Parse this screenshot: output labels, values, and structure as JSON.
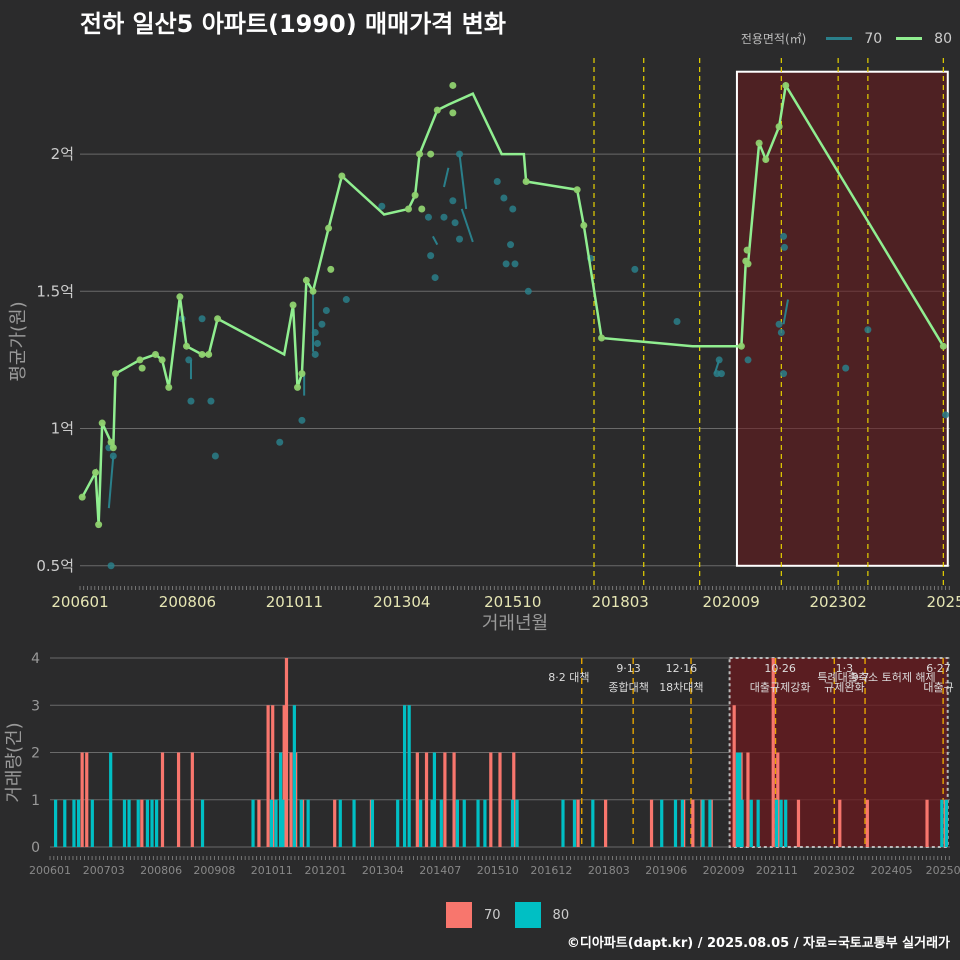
{
  "title": "전하 일산5 아파트(1990) 매매가격 변화",
  "footer": "©디아파트(dapt.kr) / 2025.08.05 / 자료=국토교통부 실거래가",
  "colors": {
    "s70_line": "#2a7f8a",
    "s80_line": "#90ee90",
    "bar70": "#f8766d",
    "bar80": "#00bfc4",
    "highlight": "#6b1a1e",
    "policy": "#e6d200",
    "policy2": "#e6a500",
    "grid": "#6a6a6a"
  },
  "chart_data": [
    {
      "type": "line",
      "title": "전하 일산5 아파트(1990) 매매가격 변화",
      "xlabel": "거래년월",
      "ylabel": "평균가(원)",
      "legend_title": "전용면적(㎡)",
      "legend": [
        "70",
        "80"
      ],
      "x_ticks": [
        "200601",
        "200806",
        "201011",
        "201304",
        "201510",
        "201803",
        "202009",
        "202302",
        "2025"
      ],
      "y_ticks": [
        {
          "v": 0.5,
          "label": "0.5억"
        },
        {
          "v": 1.0,
          "label": "1억"
        },
        {
          "v": 1.5,
          "label": "1.5억"
        },
        {
          "v": 2.0,
          "label": "2억"
        }
      ],
      "ylim": [
        0.43,
        2.35
      ],
      "xlim": [
        2006.0,
        2025.6
      ],
      "highlight_range": [
        2020.8,
        2025.55
      ],
      "policy_dates": [
        2017.58,
        2018.7,
        2019.96,
        2021.8,
        2023.08,
        2023.75,
        2025.45
      ],
      "series": [
        {
          "name": "80",
          "line": [
            [
              2006.05,
              0.75
            ],
            [
              2006.35,
              0.84
            ],
            [
              2006.42,
              0.65
            ],
            [
              2006.5,
              1.02
            ],
            [
              2006.7,
              0.95
            ],
            [
              2006.75,
              0.93
            ],
            [
              2006.8,
              1.2
            ],
            [
              2007.35,
              1.25
            ],
            [
              2007.7,
              1.27
            ],
            [
              2007.85,
              1.25
            ],
            [
              2008.0,
              1.15
            ],
            [
              2008.25,
              1.48
            ],
            [
              2008.4,
              1.3
            ],
            [
              2008.75,
              1.27
            ],
            [
              2008.9,
              1.27
            ],
            [
              2009.1,
              1.4
            ],
            [
              2010.6,
              1.27
            ],
            [
              2010.8,
              1.45
            ],
            [
              2010.9,
              1.15
            ],
            [
              2011.0,
              1.2
            ],
            [
              2011.1,
              1.54
            ],
            [
              2011.25,
              1.5
            ],
            [
              2011.6,
              1.73
            ],
            [
              2011.9,
              1.92
            ],
            [
              2012.85,
              1.78
            ],
            [
              2013.4,
              1.8
            ],
            [
              2013.55,
              1.85
            ],
            [
              2013.65,
              2.0
            ],
            [
              2014.05,
              2.16
            ],
            [
              2014.3,
              2.18
            ],
            [
              2014.85,
              2.22
            ],
            [
              2015.5,
              2.0
            ],
            [
              2016.0,
              2.0
            ],
            [
              2016.05,
              1.9
            ],
            [
              2017.2,
              1.87
            ],
            [
              2017.35,
              1.74
            ],
            [
              2017.75,
              1.33
            ],
            [
              2019.8,
              1.3
            ],
            [
              2020.9,
              1.3
            ],
            [
              2021.0,
              1.61
            ],
            [
              2021.05,
              1.6
            ],
            [
              2021.3,
              2.04
            ],
            [
              2021.45,
              1.98
            ],
            [
              2021.75,
              2.1
            ],
            [
              2021.9,
              2.25
            ],
            [
              2025.45,
              1.3
            ]
          ],
          "points": [
            [
              2006.05,
              0.75
            ],
            [
              2006.35,
              0.84
            ],
            [
              2006.42,
              0.65
            ],
            [
              2006.5,
              1.02
            ],
            [
              2006.7,
              0.95
            ],
            [
              2006.75,
              0.93
            ],
            [
              2006.8,
              1.2
            ],
            [
              2007.35,
              1.25
            ],
            [
              2007.4,
              1.22
            ],
            [
              2007.7,
              1.27
            ],
            [
              2007.85,
              1.25
            ],
            [
              2008.0,
              1.15
            ],
            [
              2008.25,
              1.48
            ],
            [
              2008.4,
              1.3
            ],
            [
              2008.75,
              1.27
            ],
            [
              2008.9,
              1.27
            ],
            [
              2009.1,
              1.4
            ],
            [
              2010.8,
              1.45
            ],
            [
              2010.9,
              1.15
            ],
            [
              2011.0,
              1.2
            ],
            [
              2011.1,
              1.54
            ],
            [
              2011.25,
              1.5
            ],
            [
              2011.6,
              1.73
            ],
            [
              2011.65,
              1.58
            ],
            [
              2011.9,
              1.92
            ],
            [
              2013.4,
              1.8
            ],
            [
              2013.55,
              1.85
            ],
            [
              2013.65,
              2.0
            ],
            [
              2013.7,
              1.8
            ],
            [
              2013.9,
              2.0
            ],
            [
              2014.05,
              2.16
            ],
            [
              2014.4,
              2.25
            ],
            [
              2014.4,
              2.15
            ],
            [
              2016.05,
              1.9
            ],
            [
              2017.2,
              1.87
            ],
            [
              2017.35,
              1.74
            ],
            [
              2017.75,
              1.33
            ],
            [
              2020.9,
              1.3
            ],
            [
              2021.0,
              1.61
            ],
            [
              2021.05,
              1.6
            ],
            [
              2021.03,
              1.65
            ],
            [
              2021.3,
              2.04
            ],
            [
              2021.45,
              1.98
            ],
            [
              2021.75,
              2.1
            ],
            [
              2021.9,
              2.25
            ],
            [
              2025.45,
              1.3
            ]
          ]
        },
        {
          "name": "70",
          "line": [
            [
              2006.65,
              0.71
            ],
            [
              2006.75,
              0.9
            ]
          ],
          "extra_lines": [
            [
              [
                2008.5,
                1.18
              ],
              [
                2008.5,
                1.25
              ]
            ],
            [
              [
                2011.05,
                1.12
              ],
              [
                2011.05,
                1.2
              ]
            ],
            [
              [
                2011.25,
                1.28
              ],
              [
                2011.25,
                1.5
              ]
            ],
            [
              [
                2014.2,
                1.88
              ],
              [
                2014.3,
                1.95
              ]
            ],
            [
              [
                2013.95,
                1.7
              ],
              [
                2014.05,
                1.67
              ]
            ],
            [
              [
                2014.6,
                1.8
              ],
              [
                2014.85,
                1.68
              ]
            ],
            [
              [
                2014.55,
                2.0
              ],
              [
                2014.7,
                1.8
              ]
            ],
            [
              [
                2020.3,
                1.2
              ],
              [
                2020.4,
                1.25
              ]
            ],
            [
              [
                2021.85,
                1.38
              ],
              [
                2021.95,
                1.47
              ]
            ]
          ],
          "points": [
            [
              2006.7,
              0.5
            ],
            [
              2006.75,
              0.9
            ],
            [
              2006.65,
              0.93
            ],
            [
              2008.3,
              1.4
            ],
            [
              2008.5,
              1.1
            ],
            [
              2008.45,
              1.25
            ],
            [
              2008.75,
              1.4
            ],
            [
              2008.95,
              1.1
            ],
            [
              2009.05,
              0.9
            ],
            [
              2010.5,
              0.95
            ],
            [
              2011.0,
              1.03
            ],
            [
              2011.3,
              1.35
            ],
            [
              2011.35,
              1.31
            ],
            [
              2011.3,
              1.27
            ],
            [
              2011.45,
              1.38
            ],
            [
              2011.55,
              1.43
            ],
            [
              2012.0,
              1.47
            ],
            [
              2012.8,
              1.81
            ],
            [
              2013.85,
              1.77
            ],
            [
              2013.9,
              1.63
            ],
            [
              2014.0,
              1.55
            ],
            [
              2014.2,
              1.77
            ],
            [
              2014.4,
              1.83
            ],
            [
              2014.45,
              1.75
            ],
            [
              2014.55,
              1.69
            ],
            [
              2014.55,
              2.0
            ],
            [
              2015.4,
              1.9
            ],
            [
              2015.55,
              1.84
            ],
            [
              2015.6,
              1.6
            ],
            [
              2015.7,
              1.67
            ],
            [
              2015.75,
              1.8
            ],
            [
              2015.8,
              1.6
            ],
            [
              2016.1,
              1.5
            ],
            [
              2017.5,
              1.62
            ],
            [
              2018.5,
              1.58
            ],
            [
              2019.45,
              1.39
            ],
            [
              2020.35,
              1.2
            ],
            [
              2020.4,
              1.25
            ],
            [
              2020.45,
              1.2
            ],
            [
              2021.05,
              1.25
            ],
            [
              2021.75,
              1.38
            ],
            [
              2021.8,
              1.35
            ],
            [
              2021.85,
              1.2
            ],
            [
              2021.85,
              1.7
            ],
            [
              2021.87,
              1.66
            ],
            [
              2023.25,
              1.22
            ],
            [
              2023.75,
              1.36
            ],
            [
              2025.5,
              1.05
            ]
          ]
        }
      ]
    },
    {
      "type": "bar",
      "ylabel": "거래량(건)",
      "legend": [
        "70",
        "80"
      ],
      "y_ticks": [
        0,
        1,
        2,
        3,
        4
      ],
      "x_ticks": [
        "200601",
        "200703",
        "200806",
        "200908",
        "201011",
        "201201",
        "201304",
        "201407",
        "201510",
        "201612",
        "201803",
        "201906",
        "202009",
        "202111",
        "202302",
        "202405",
        "20250"
      ],
      "xlim": [
        2006.0,
        2025.6
      ],
      "highlight_range": [
        2020.8,
        2025.55
      ],
      "policy_dates": [
        2017.58,
        2018.7,
        2019.96,
        2021.8,
        2023.08,
        2023.75,
        2025.45
      ],
      "annotations": [
        {
          "x": 2017.3,
          "line1": "",
          "line2": "8·2 대책"
        },
        {
          "x": 2018.6,
          "line1": "9·13",
          "line2": "종합대책"
        },
        {
          "x": 2019.75,
          "line1": "12·16",
          "line2": "18차대책"
        },
        {
          "x": 2021.9,
          "line1": "10·26",
          "line2": "대출규제강화"
        },
        {
          "x": 2023.3,
          "line1": "1·3",
          "line2": "규제완화"
        },
        {
          "x": 2023.65,
          "line1": "",
          "line2": "9·7"
        },
        {
          "x": 2024.0,
          "line1": "",
          "line2": "특례대출축소 토허제 해제"
        },
        {
          "x": 2025.35,
          "line1": "6·27",
          "line2": "대출규"
        }
      ],
      "bars70": [
        [
          2006.7,
          2
        ],
        [
          2006.8,
          2
        ],
        [
          2008.45,
          2
        ],
        [
          2008.8,
          2
        ],
        [
          2009.1,
          2
        ],
        [
          2008.0,
          1
        ],
        [
          2010.55,
          1
        ],
        [
          2010.75,
          3
        ],
        [
          2010.85,
          3
        ],
        [
          2011.1,
          3
        ],
        [
          2011.15,
          4
        ],
        [
          2011.25,
          2
        ],
        [
          2011.35,
          2
        ],
        [
          2011.5,
          1
        ],
        [
          2012.2,
          1
        ],
        [
          2013.0,
          1
        ],
        [
          2014.0,
          2
        ],
        [
          2014.2,
          2
        ],
        [
          2014.6,
          2
        ],
        [
          2014.8,
          2
        ],
        [
          2015.6,
          2
        ],
        [
          2015.8,
          2
        ],
        [
          2016.1,
          2
        ],
        [
          2017.5,
          1
        ],
        [
          2018.1,
          1
        ],
        [
          2019.1,
          1
        ],
        [
          2019.8,
          1
        ],
        [
          2020.0,
          1
        ],
        [
          2020.2,
          1
        ],
        [
          2020.4,
          1
        ],
        [
          2020.9,
          3
        ],
        [
          2021.05,
          2
        ],
        [
          2021.2,
          2
        ],
        [
          2021.75,
          4
        ],
        [
          2021.85,
          2
        ],
        [
          2022.3,
          1
        ],
        [
          2023.2,
          1
        ],
        [
          2023.8,
          1
        ],
        [
          2025.1,
          1
        ],
        [
          2025.5,
          1
        ]
      ],
      "bars80": [
        [
          2006.1,
          1
        ],
        [
          2006.3,
          1
        ],
        [
          2006.5,
          1
        ],
        [
          2006.6,
          1
        ],
        [
          2006.9,
          1
        ],
        [
          2007.3,
          2
        ],
        [
          2007.6,
          1
        ],
        [
          2007.7,
          1
        ],
        [
          2007.9,
          1
        ],
        [
          2008.1,
          1
        ],
        [
          2008.2,
          1
        ],
        [
          2008.3,
          1
        ],
        [
          2009.3,
          1
        ],
        [
          2010.4,
          1
        ],
        [
          2010.8,
          1
        ],
        [
          2010.9,
          1
        ],
        [
          2011.0,
          2
        ],
        [
          2011.05,
          1
        ],
        [
          2011.3,
          3
        ],
        [
          2011.45,
          1
        ],
        [
          2011.6,
          1
        ],
        [
          2012.3,
          1
        ],
        [
          2012.6,
          1
        ],
        [
          2013.0,
          1
        ],
        [
          2013.55,
          1
        ],
        [
          2013.7,
          3
        ],
        [
          2013.8,
          3
        ],
        [
          2014.05,
          1
        ],
        [
          2014.3,
          1
        ],
        [
          2014.35,
          2
        ],
        [
          2014.5,
          1
        ],
        [
          2014.85,
          1
        ],
        [
          2015.0,
          1
        ],
        [
          2015.3,
          1
        ],
        [
          2015.45,
          1
        ],
        [
          2016.05,
          1
        ],
        [
          2016.15,
          1
        ],
        [
          2017.15,
          1
        ],
        [
          2017.4,
          1
        ],
        [
          2017.8,
          1
        ],
        [
          2019.3,
          1
        ],
        [
          2019.6,
          1
        ],
        [
          2019.75,
          1
        ],
        [
          2020.2,
          1
        ],
        [
          2020.35,
          1
        ],
        [
          2020.95,
          2
        ],
        [
          2021.0,
          2
        ],
        [
          2021.05,
          1
        ],
        [
          2021.25,
          1
        ],
        [
          2021.4,
          1
        ],
        [
          2021.8,
          1
        ],
        [
          2021.9,
          1
        ],
        [
          2022.0,
          1
        ],
        [
          2025.4,
          1
        ],
        [
          2025.5,
          1
        ]
      ]
    }
  ],
  "legend_bottom": {
    "label70": "70",
    "label80": "80"
  }
}
